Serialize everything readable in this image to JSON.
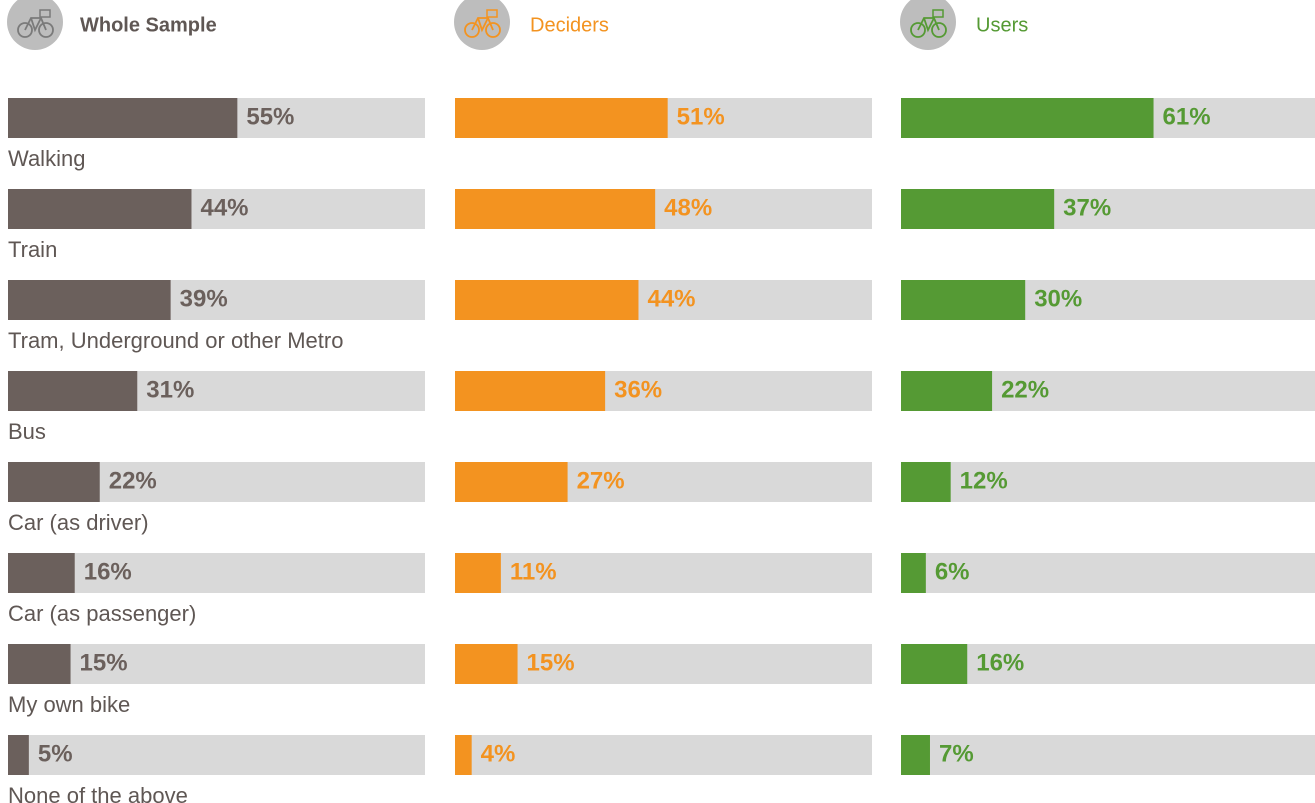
{
  "chart_data": {
    "type": "bar",
    "categories": [
      "Walking",
      "Train",
      "Tram, Underground or other Metro",
      "Bus",
      "Car (as driver)",
      "Car (as passenger)",
      "My own bike",
      "None of the above"
    ],
    "xlim": [
      0,
      100
    ],
    "track_color": "#d9d9d9",
    "series": [
      {
        "name": "Whole Sample",
        "color": "#6b605c",
        "values": [
          55,
          44,
          39,
          31,
          22,
          16,
          15,
          5
        ],
        "value_labels": [
          "55%",
          "44%",
          "39%",
          "31%",
          "22%",
          "16%",
          "15%",
          "5%"
        ]
      },
      {
        "name": "Deciders",
        "color": "#f39320",
        "values": [
          51,
          48,
          44,
          36,
          27,
          11,
          15,
          4
        ],
        "value_labels": [
          "51%",
          "48%",
          "44%",
          "36%",
          "27%",
          "11%",
          "15%",
          "4%"
        ]
      },
      {
        "name": "Users",
        "color": "#559a34",
        "values": [
          61,
          37,
          30,
          22,
          12,
          6,
          16,
          7
        ],
        "value_labels": [
          "61%",
          "37%",
          "30%",
          "22%",
          "12%",
          "6%",
          "16%",
          "7%"
        ]
      }
    ]
  }
}
